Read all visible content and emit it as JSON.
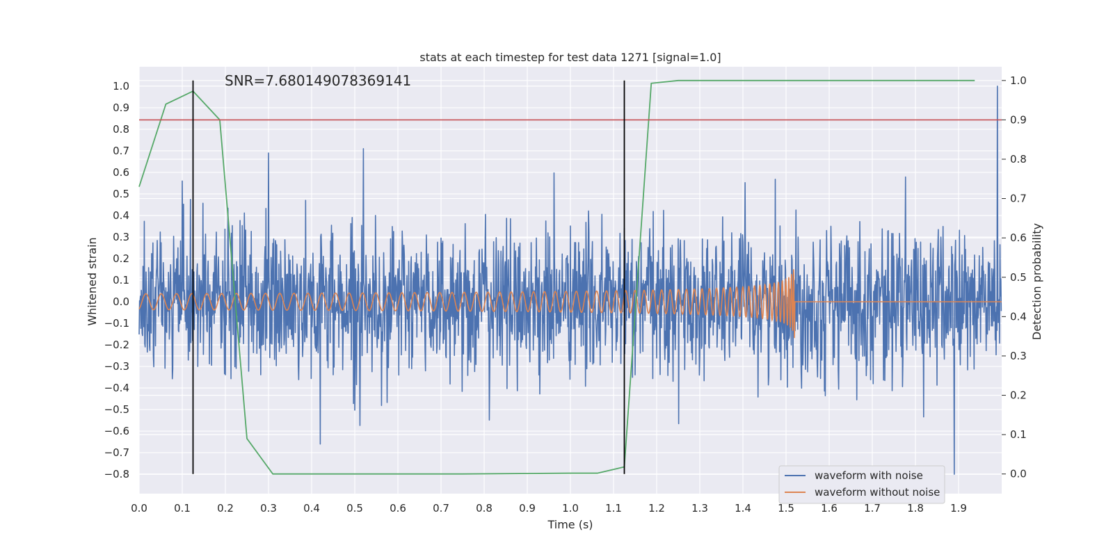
{
  "chart_data": {
    "type": "line",
    "title": "stats at each timestep for test data 1271 [signal=1.0]",
    "annotation": "SNR=7.680149078369141",
    "xlabel": "Time (s)",
    "ylabel_left": "Whitened strain",
    "ylabel_right": "Detection probability",
    "xlim": [
      0.0,
      2.0
    ],
    "ylim_left": [
      -0.89,
      1.09
    ],
    "ylim_right": [
      -0.05,
      1.035
    ],
    "xticks": [
      "0.0",
      "0.1",
      "0.2",
      "0.3",
      "0.4",
      "0.5",
      "0.6",
      "0.7",
      "0.8",
      "0.9",
      "1.0",
      "1.1",
      "1.2",
      "1.3",
      "1.4",
      "1.5",
      "1.6",
      "1.7",
      "1.8",
      "1.9"
    ],
    "yticks_left": [
      "-0.8",
      "-0.7",
      "-0.6",
      "-0.5",
      "-0.4",
      "-0.3",
      "-0.2",
      "-0.1",
      "0.0",
      "0.1",
      "0.2",
      "0.3",
      "0.4",
      "0.5",
      "0.6",
      "0.7",
      "0.8",
      "0.9",
      "1.0"
    ],
    "yticks_right": [
      "0.0",
      "0.1",
      "0.2",
      "0.3",
      "0.4",
      "0.5",
      "0.6",
      "0.7",
      "0.8",
      "0.9",
      "1.0"
    ],
    "grid": true,
    "legend_position": "bottom-right",
    "series": [
      {
        "name": "waveform with noise",
        "color": "#4c72b0",
        "axis": "left",
        "style": "noisy strain, amplitude about ±0.3 with spikes",
        "peaks": [
          {
            "x": 0.1,
            "y": 0.56
          },
          {
            "x": 0.3,
            "y": 0.69
          },
          {
            "x": 0.52,
            "y": 0.71
          },
          {
            "x": 0.42,
            "y": -0.66
          },
          {
            "x": 1.89,
            "y": -0.8
          },
          {
            "x": 1.99,
            "y": 1.0
          }
        ]
      },
      {
        "name": "waveform without noise",
        "color": "#dd8452",
        "axis": "left",
        "style": "chirp signal, amplitude about 0.04 growing to 0.17, ending at 1.52 s",
        "end_time": 1.52,
        "peak_amplitude": 0.17
      },
      {
        "color": "#55a868",
        "axis": "right",
        "x": [
          0.0,
          0.062,
          0.125,
          0.187,
          0.25,
          0.31,
          0.375,
          0.5,
          0.75,
          1.0,
          1.0625,
          1.125,
          1.1875,
          1.25,
          1.5,
          1.75,
          1.9375
        ],
        "y": [
          0.73,
          0.94,
          0.973,
          0.9,
          0.09,
          0.0,
          0.0,
          0.0,
          0.0,
          0.002,
          0.002,
          0.018,
          0.993,
          1.0,
          1.0,
          1.0,
          1.0
        ]
      }
    ],
    "threshold": {
      "axis": "right",
      "value": 0.9,
      "color": "#c44e52"
    },
    "vertical_markers": {
      "x": [
        0.125,
        1.125
      ],
      "y_range_right": [
        0.0,
        1.0
      ],
      "color": "#000000"
    }
  }
}
